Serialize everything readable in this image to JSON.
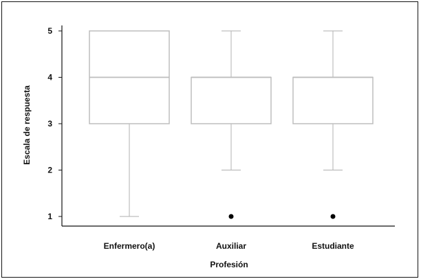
{
  "chart_data": {
    "type": "boxplot",
    "title": "",
    "xlabel": "Profesión",
    "ylabel": "Escala de respuesta",
    "ylim": [
      1,
      5
    ],
    "yticks": [
      1,
      2,
      3,
      4,
      5
    ],
    "grid": false,
    "legend": "none",
    "categories": [
      "Enfermero(a)",
      "Auxiliar",
      "Estudiante"
    ],
    "boxes": [
      {
        "category": "Enfermero(a)",
        "whisker_low": 1,
        "q1": 3,
        "median": 4,
        "q3": 5,
        "whisker_high": 5,
        "outliers": []
      },
      {
        "category": "Auxiliar",
        "whisker_low": 2,
        "q1": 3,
        "median": 4,
        "q3": 4,
        "whisker_high": 5,
        "outliers": [
          1
        ]
      },
      {
        "category": "Estudiante",
        "whisker_low": 2,
        "q1": 3,
        "median": 4,
        "q3": 4,
        "whisker_high": 5,
        "outliers": [
          1
        ]
      }
    ],
    "colors": {
      "box": "#bdbdbd",
      "axis": "#111111",
      "outlier": "#000000"
    }
  }
}
